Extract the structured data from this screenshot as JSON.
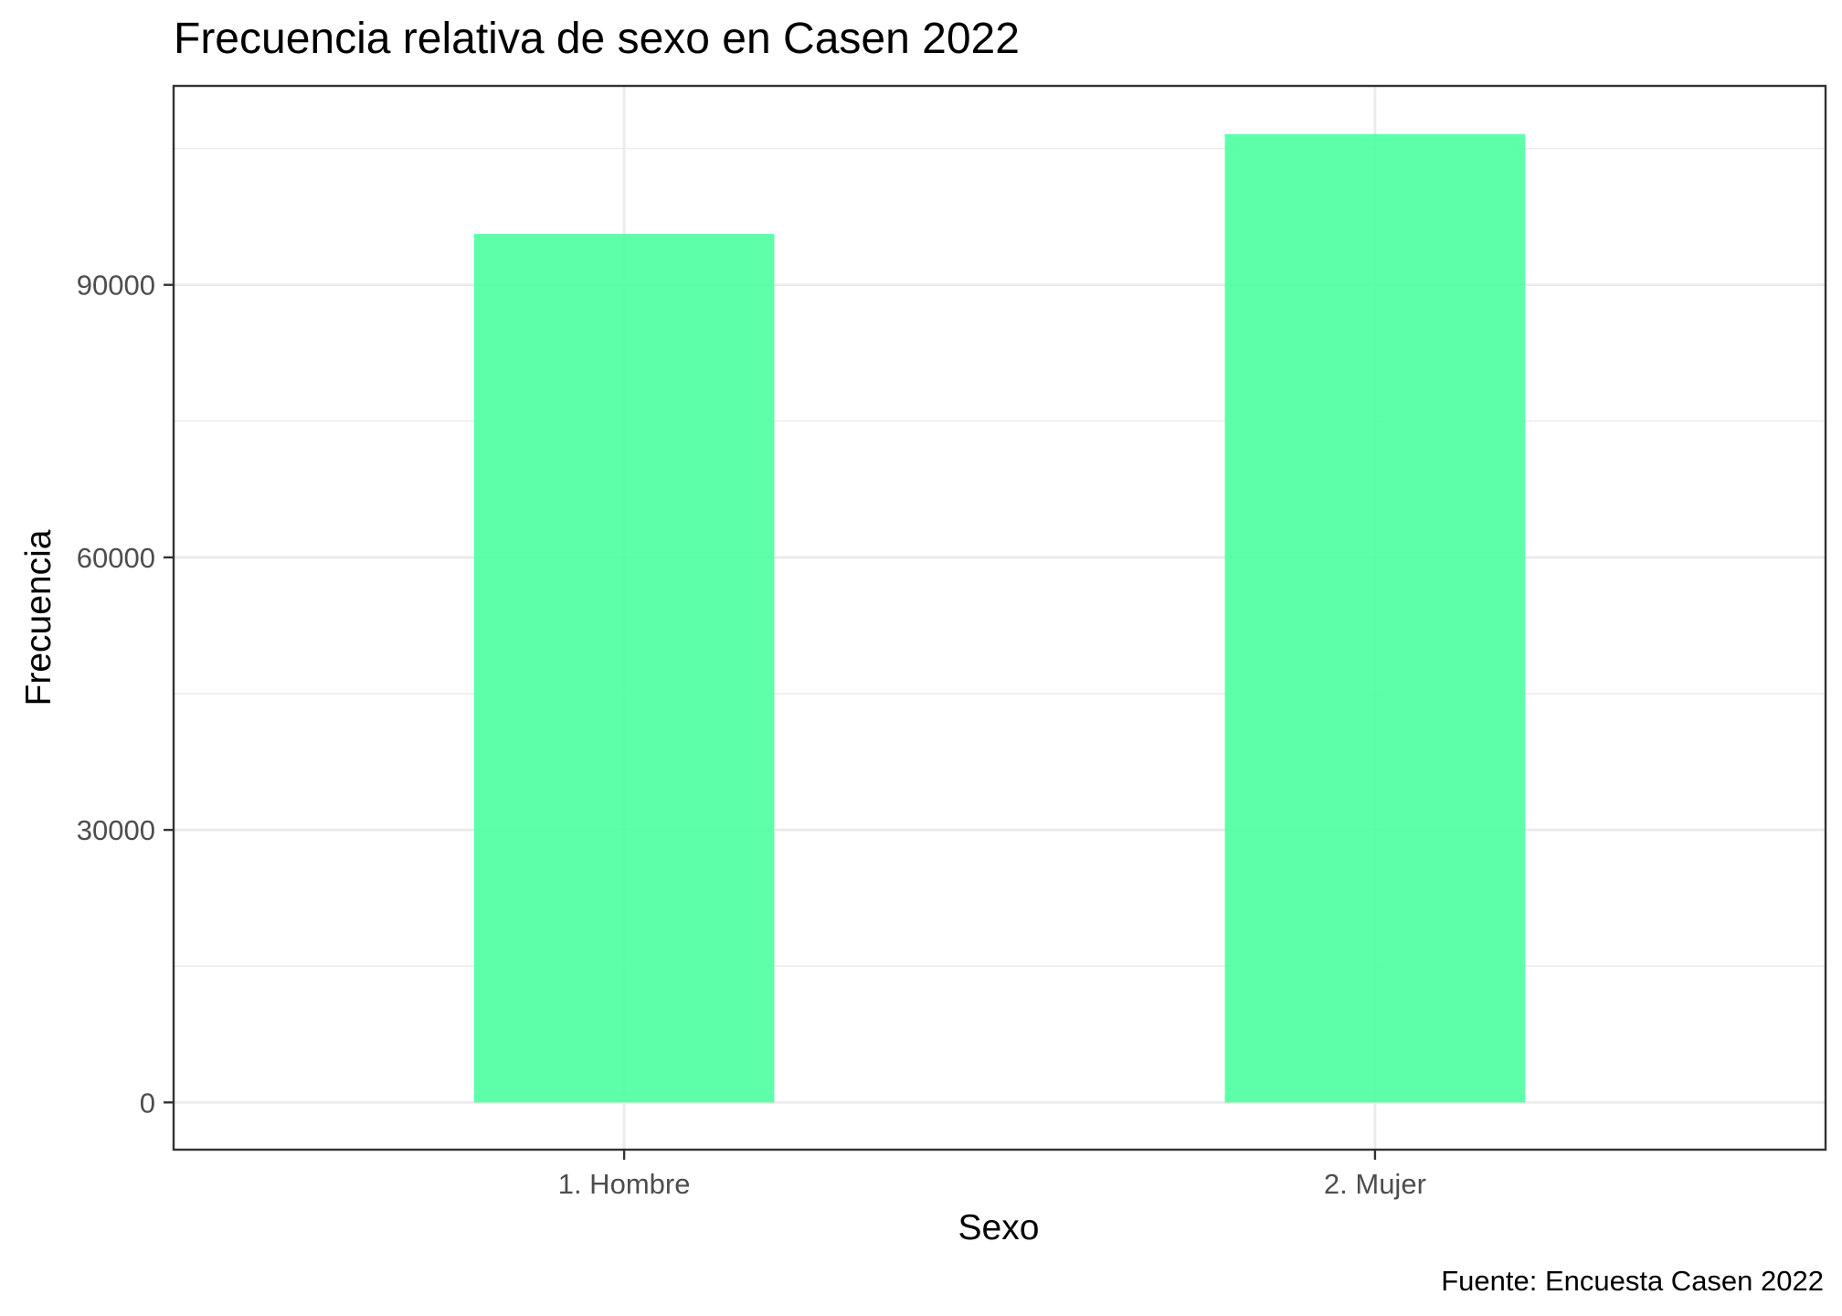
{
  "chart_data": {
    "type": "bar",
    "title": "Frecuencia relativa de sexo en Casen 2022",
    "xlabel": "Sexo",
    "ylabel": "Frecuencia",
    "caption": "Fuente: Encuesta Casen 2022",
    "categories": [
      "1. Hombre",
      "2. Mujer"
    ],
    "values": [
      95600,
      106600
    ],
    "ylim": [
      -5200,
      111900
    ],
    "yticks": [
      0,
      30000,
      60000,
      90000
    ],
    "ytick_labels": [
      "0",
      "30000",
      "60000",
      "90000"
    ],
    "yminor": [
      15000,
      45000,
      75000,
      105000
    ],
    "grid": true,
    "legend": "none",
    "bar_color": "#4dffa0",
    "bar_opacity": 0.9
  }
}
